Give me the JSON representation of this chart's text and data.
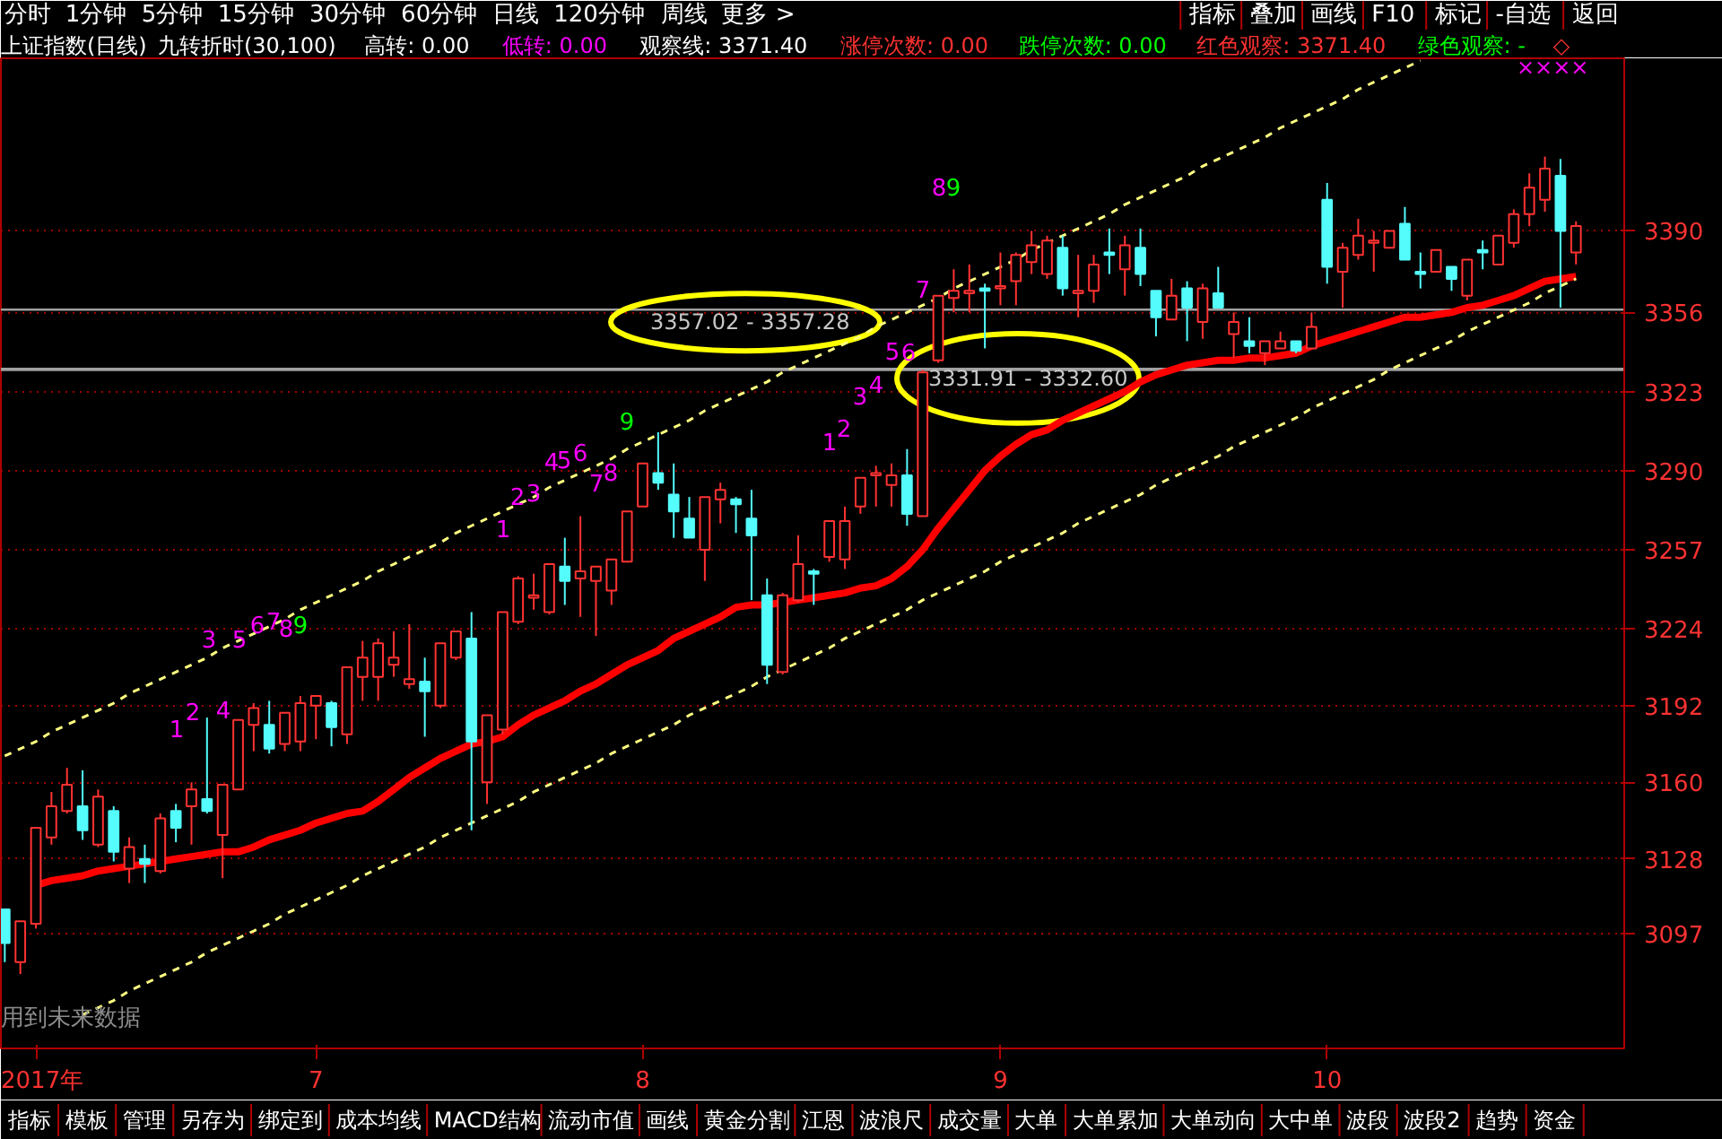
{
  "chart_data": {
    "type": "candlestick",
    "title": "上证指数(日线)",
    "categories": [
      null,
      null,
      "2017年",
      null,
      null,
      null,
      null,
      null,
      null,
      null,
      null,
      null,
      null,
      null,
      null,
      null,
      null,
      null,
      null,
      null,
      "7",
      null,
      null,
      null,
      null,
      null,
      null,
      null,
      null,
      null,
      null,
      null,
      null,
      null,
      null,
      null,
      null,
      null,
      null,
      null,
      null,
      "8",
      null,
      null,
      null,
      null,
      null,
      null,
      null,
      null,
      null,
      null,
      null,
      null,
      null,
      null,
      null,
      null,
      null,
      null,
      null,
      null,
      null,
      null,
      "9",
      null,
      null,
      null,
      null,
      null,
      null,
      null,
      null,
      null,
      null,
      null,
      null,
      null,
      null,
      null,
      null,
      null,
      null,
      null,
      null,
      "10",
      null,
      null,
      null,
      null,
      null,
      null,
      null,
      null,
      null,
      null,
      null,
      null,
      null,
      null,
      null,
      null
    ],
    "ohlc": [
      [
        3107,
        3107,
        3085,
        3093
      ],
      [
        3085,
        3102,
        3080,
        3102
      ],
      [
        3101,
        3141,
        3099,
        3141
      ],
      [
        3137,
        3156,
        3134,
        3150
      ],
      [
        3148,
        3166,
        3147,
        3159
      ],
      [
        3150,
        3165,
        3136,
        3140
      ],
      [
        3134,
        3157,
        3133,
        3154
      ],
      [
        3148,
        3150,
        3127,
        3131
      ],
      [
        3124,
        3137,
        3118,
        3133
      ],
      [
        3128,
        3134,
        3118,
        3126
      ],
      [
        3123,
        3147,
        3122,
        3145
      ],
      [
        3148,
        3151,
        3135,
        3141
      ],
      [
        3150,
        3160,
        3134,
        3157
      ],
      [
        3153,
        3187,
        3147,
        3148
      ],
      [
        3138,
        3159,
        3120,
        3159
      ],
      [
        3157,
        3186,
        3157,
        3186
      ],
      [
        3184,
        3193,
        3173,
        3191
      ],
      [
        3184,
        3194,
        3172,
        3174
      ],
      [
        3176,
        3189,
        3173,
        3189
      ],
      [
        3177,
        3196,
        3173,
        3193
      ],
      [
        3192,
        3196,
        3178,
        3196
      ],
      [
        3193,
        3194,
        3175,
        3183
      ],
      [
        3180,
        3208,
        3176,
        3208
      ],
      [
        3204,
        3219,
        3194,
        3212
      ],
      [
        3204,
        3220,
        3194,
        3218
      ],
      [
        3209,
        3223,
        3204,
        3212
      ],
      [
        3201,
        3226,
        3199,
        3203
      ],
      [
        3202,
        3212,
        3179,
        3198
      ],
      [
        3192,
        3218,
        3191,
        3218
      ],
      [
        3212,
        3223,
        3211,
        3223
      ],
      [
        3220,
        3231,
        3140,
        3177
      ],
      [
        3160,
        3188,
        3151,
        3188
      ],
      [
        3182,
        3231,
        3180,
        3231
      ],
      [
        3227,
        3246,
        3226,
        3245
      ],
      [
        3237,
        3247,
        3232,
        3238
      ],
      [
        3231,
        3251,
        3230,
        3251
      ],
      [
        3250,
        3262,
        3234,
        3244
      ],
      [
        3245,
        3271,
        3229,
        3248
      ],
      [
        3244,
        3250,
        3221,
        3250
      ],
      [
        3240,
        3253,
        3234,
        3253
      ],
      [
        3252,
        3273,
        3252,
        3273
      ],
      [
        3275,
        3293,
        3275,
        3293
      ],
      [
        3289,
        3306,
        3282,
        3285
      ],
      [
        3280,
        3293,
        3262,
        3273
      ],
      [
        3270,
        3279,
        3262,
        3262
      ],
      [
        3257,
        3279,
        3244,
        3279
      ],
      [
        3278,
        3285,
        3268,
        3282
      ],
      [
        3278,
        3279,
        3264,
        3276
      ],
      [
        3270,
        3282,
        3236,
        3263
      ],
      [
        3238,
        3245,
        3201,
        3209
      ],
      [
        3206,
        3239,
        3205,
        3238
      ],
      [
        3236,
        3263,
        3235,
        3251
      ],
      [
        3248,
        3249,
        3234,
        3247
      ],
      [
        3254,
        3269,
        3252,
        3269
      ],
      [
        3253,
        3275,
        3249,
        3269
      ],
      [
        3275,
        3287,
        3272,
        3287
      ],
      [
        3288,
        3292,
        3275,
        3289
      ],
      [
        3284,
        3293,
        3275,
        3288
      ],
      [
        3288,
        3299,
        3267,
        3272
      ],
      [
        3271,
        3332,
        3271,
        3331
      ],
      [
        3336,
        3363,
        3335,
        3363
      ],
      [
        3362,
        3374,
        3356,
        3365
      ],
      [
        3364,
        3376,
        3356,
        3365
      ],
      [
        3366,
        3368,
        3341,
        3365
      ],
      [
        3366,
        3381,
        3359,
        3367
      ],
      [
        3369,
        3381,
        3359,
        3380
      ],
      [
        3377,
        3390,
        3372,
        3384
      ],
      [
        3372,
        3388,
        3370,
        3386
      ],
      [
        3383,
        3388,
        3363,
        3366
      ],
      [
        3364,
        3380,
        3354,
        3365
      ],
      [
        3365,
        3380,
        3360,
        3376
      ],
      [
        3381,
        3391,
        3372,
        3380
      ],
      [
        3374,
        3388,
        3363,
        3384
      ],
      [
        3383,
        3391,
        3367,
        3372
      ],
      [
        3365,
        3365,
        3346,
        3354
      ],
      [
        3353,
        3370,
        3353,
        3363
      ],
      [
        3366,
        3369,
        3344,
        3358
      ],
      [
        3352,
        3368,
        3345,
        3366
      ],
      [
        3364,
        3375,
        3358,
        3358
      ],
      [
        3347,
        3356,
        3337,
        3352
      ],
      [
        3344,
        3354,
        3339,
        3342
      ],
      [
        3339,
        3344,
        3334,
        3344
      ],
      [
        3341,
        3348,
        3341,
        3344
      ],
      [
        3344,
        3344,
        3339,
        3340
      ],
      [
        3341,
        3356,
        3341,
        3350
      ],
      [
        3403,
        3410,
        3368,
        3375
      ],
      [
        3373,
        3385,
        3358,
        3383
      ],
      [
        3380,
        3395,
        3378,
        3388
      ],
      [
        3385,
        3390,
        3373,
        3386
      ],
      [
        3383,
        3390,
        3383,
        3390
      ],
      [
        3393,
        3400,
        3378,
        3378
      ],
      [
        3373,
        3381,
        3366,
        3372
      ],
      [
        3373,
        3382,
        3373,
        3382
      ],
      [
        3375,
        3375,
        3365,
        3370
      ],
      [
        3363,
        3378,
        3361,
        3378
      ],
      [
        3382,
        3386,
        3374,
        3381
      ],
      [
        3376,
        3388,
        3376,
        3388
      ],
      [
        3385,
        3399,
        3383,
        3397
      ],
      [
        3397,
        3414,
        3392,
        3408
      ],
      [
        3403,
        3421,
        3398,
        3416
      ],
      [
        3413,
        3420,
        3358,
        3390
      ],
      [
        3381,
        3394,
        3376,
        3392
      ]
    ],
    "colors": [
      "#54fcfc",
      "#ff3232",
      "#ff3232",
      "#ff3232",
      "#ff3232",
      "#54fcfc",
      "#ff3232",
      "#54fcfc",
      "#ff3232",
      "#54fcfc",
      "#ff3232",
      "#54fcfc",
      "#ff3232",
      "#54fcfc",
      "#ff3232",
      "#ff3232",
      "#ff3232",
      "#54fcfc",
      "#ff3232",
      "#ff3232",
      "#ff3232",
      "#54fcfc",
      "#ff3232",
      "#ff3232",
      "#ff3232",
      "#ff3232",
      "#ff3232",
      "#54fcfc",
      "#ff3232",
      "#ff3232",
      "#54fcfc",
      "#ff3232",
      "#ff3232",
      "#ff3232",
      "#ff3232",
      "#ff3232",
      "#54fcfc",
      "#ff3232",
      "#ff3232",
      "#ff3232",
      "#ff3232",
      "#ff3232",
      "#54fcfc",
      "#54fcfc",
      "#54fcfc",
      "#ff3232",
      "#ff3232",
      "#54fcfc",
      "#54fcfc",
      "#54fcfc",
      "#ff3232",
      "#ff3232",
      "#54fcfc",
      "#ff3232",
      "#ff3232",
      "#ff3232",
      "#ff3232",
      "#ff3232",
      "#54fcfc",
      "#ff3232",
      "#ff3232",
      "#ff3232",
      "#ff3232",
      "#54fcfc",
      "#ff3232",
      "#ff3232",
      "#ff3232",
      "#ff3232",
      "#54fcfc",
      "#ff3232",
      "#ff3232",
      "#54fcfc",
      "#ff3232",
      "#54fcfc",
      "#54fcfc",
      "#ff3232",
      "#54fcfc",
      "#ff3232",
      "#54fcfc",
      "#ff3232",
      "#54fcfc",
      "#ff3232",
      "#ff3232",
      "#54fcfc",
      "#ff3232",
      "#54fcfc",
      "#ff3232",
      "#ff3232",
      "#ff3232",
      "#ff3232",
      "#54fcfc",
      "#54fcfc",
      "#ff3232",
      "#54fcfc",
      "#ff3232",
      "#54fcfc",
      "#ff3232",
      "#ff3232",
      "#ff3232",
      "#ff3232",
      "#54fcfc",
      "#ff3232"
    ],
    "series": [
      {
        "type": "line",
        "color": "#ff0000",
        "line_style": "solid",
        "values": [
          null,
          null,
          3117,
          3119,
          3120,
          3121,
          3123,
          3124,
          3125,
          3126,
          3127,
          3128,
          3129,
          3130,
          3131,
          3131,
          3133,
          3136,
          3138,
          3140,
          3143,
          3145,
          3147,
          3148,
          3152,
          3157,
          3162,
          3166,
          3170,
          3173,
          3176,
          3177,
          3179,
          3184,
          3188,
          3191,
          3194,
          3198,
          3201,
          3205,
          3209,
          3212,
          3215,
          3220,
          3223,
          3226,
          3229,
          3233,
          3234,
          3234,
          3235,
          3236,
          3237,
          3238,
          3239,
          3241,
          3242,
          3245,
          3250,
          3257,
          3266,
          3274,
          3282,
          3290,
          3296,
          3301,
          3305,
          3307,
          3311,
          3314,
          3317,
          3320,
          3323,
          3327,
          3330,
          3332,
          3334,
          3335,
          3336,
          3336,
          3337,
          3337,
          3338,
          3339,
          3342,
          3344,
          3346,
          3348,
          3350,
          3352,
          3354,
          3354,
          3355,
          3356,
          3358,
          3359,
          3361,
          3363,
          3366,
          3369,
          3370,
          3371
        ]
      },
      {
        "type": "line",
        "color": "#ffff80",
        "line_style": "dashed",
        "values": [
          3171,
          3174,
          3177,
          3181,
          3184,
          3187,
          3190,
          3193,
          3197,
          3200,
          3203,
          3206,
          3209,
          3212,
          3216,
          3219,
          3222,
          3225,
          3228,
          3232,
          3235,
          3238,
          3241,
          3244,
          3248,
          3251,
          3254,
          3257,
          3260,
          3264,
          3267,
          3270,
          3273,
          3276,
          3279,
          3283,
          3286,
          3289,
          3292,
          3295,
          3299,
          3302,
          3305,
          3308,
          3311,
          3315,
          3318,
          3321,
          3324,
          3327,
          3331,
          3334,
          3337,
          3340,
          3343,
          3346,
          3350,
          3353,
          3356,
          3359,
          3362,
          3366,
          3369,
          3372,
          3375,
          3378,
          3382,
          3385,
          3388,
          3391,
          3394,
          3397,
          3401,
          3404,
          3407,
          3410,
          3413,
          3417,
          3420,
          3423,
          3426,
          3429,
          3433,
          3436,
          3439,
          3442,
          3445,
          3449,
          3452,
          3455,
          3458,
          3461,
          null,
          null,
          null,
          null,
          null,
          null,
          null,
          null,
          null,
          null
        ]
      },
      {
        "type": "line",
        "color": "#ffff80",
        "line_style": "dashed",
        "values": [
          null,
          null,
          null,
          null,
          null,
          3063,
          3066,
          3069,
          3073,
          3076,
          3079,
          3082,
          3085,
          3089,
          3092,
          3095,
          3098,
          3101,
          3105,
          3108,
          3111,
          3114,
          3117,
          3121,
          3124,
          3127,
          3130,
          3133,
          3137,
          3140,
          3143,
          3146,
          3149,
          3152,
          3156,
          3159,
          3162,
          3165,
          3168,
          3172,
          3175,
          3178,
          3181,
          3184,
          3188,
          3191,
          3194,
          3197,
          3200,
          3204,
          3207,
          3210,
          3213,
          3216,
          3220,
          3223,
          3226,
          3229,
          3232,
          3236,
          3239,
          3242,
          3245,
          3248,
          3252,
          3255,
          3258,
          3261,
          3264,
          3268,
          3271,
          3274,
          3277,
          3280,
          3284,
          3287,
          3290,
          3293,
          3296,
          3300,
          3303,
          3306,
          3309,
          3312,
          3316,
          3319,
          3322,
          3325,
          3328,
          3332,
          3335,
          3338,
          3341,
          3344,
          3348,
          3351,
          3354,
          3357,
          3360,
          3364,
          3367,
          3370
        ]
      }
    ],
    "ylim": [
      3049,
      3462
    ],
    "yticks": [
      3097,
      3128,
      3160,
      3192,
      3224,
      3257,
      3290,
      3323,
      3356,
      3390
    ],
    "grid": "y",
    "bands": [
      {
        "axis": "y",
        "from": 3331.91,
        "to": 3332.6,
        "label": "3331.91 - 3332.60",
        "color": "#a0a0a0"
      },
      {
        "axis": "y",
        "from": 3357.02,
        "to": 3357.28,
        "label": "3357.02 - 3357.28",
        "color": "#a0a0a0"
      }
    ],
    "annotations": [
      "分时",
      "1分钟",
      "5分钟",
      "15分钟",
      "30分钟",
      "60分钟",
      "日线",
      "120分钟",
      "周线",
      "更多 >",
      "指标",
      "叠加",
      "画线",
      "F10",
      "标记",
      "-自选",
      "返回",
      "九转折时(30,100)",
      "高转: 0.00",
      "低转: 0.00",
      "观察线: 3371.40",
      "涨停次数: 0.00",
      "跌停次数: 0.00",
      "红色观察: 3371.40",
      "绿色观察: -",
      "◇",
      "指标",
      "模板",
      "管理",
      "另存为",
      "绑定到",
      "成本均线",
      "MACD结构",
      "流动市值",
      "画线",
      "黄金分割",
      "江恩",
      "波浪尺",
      "成交量",
      "大单",
      "大单累加",
      "大单动向",
      "大中单",
      "波段",
      "波段2",
      "趋势",
      "资金",
      "用到未来数据",
      "××××",
      "1",
      "2",
      "3",
      "4",
      "5",
      "6",
      "7",
      "8",
      "9",
      "1",
      "2",
      "3",
      "4",
      "5",
      "6",
      "7",
      "8",
      "9",
      "1",
      "2",
      "3",
      "4",
      "5",
      "6",
      "7",
      "8",
      "9"
    ]
  }
}
